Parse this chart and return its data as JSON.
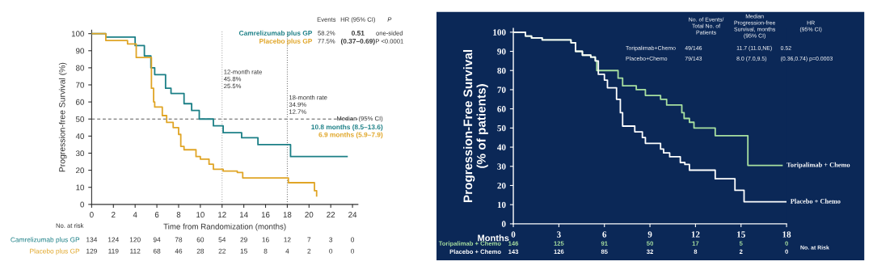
{
  "chart_data": [
    {
      "type": "step",
      "xlabel": "Time from Randomization (months)",
      "ylabel": "Progression-free Survival (%)",
      "xlim": [
        0,
        24.5
      ],
      "ylim": [
        0,
        102
      ],
      "xticks": [
        0,
        2,
        4,
        6,
        8,
        10,
        12,
        14,
        16,
        18,
        20,
        22,
        24
      ],
      "yticks": [
        0,
        10,
        20,
        30,
        40,
        50,
        60,
        70,
        80,
        90,
        100
      ],
      "grid": false,
      "legend": false,
      "ref_lines": [
        {
          "axis": "y",
          "value": 50,
          "color": "#555555",
          "line_style": "dashed"
        },
        {
          "axis": "x",
          "value": 12,
          "color": "#999999",
          "line_style": "dotted"
        },
        {
          "axis": "x",
          "value": 18,
          "color": "#555555",
          "line_style": "dotted"
        }
      ],
      "series": [
        {
          "name": "Camrelizumab plus GP",
          "color": "#1b7f86",
          "x": [
            0,
            1.3,
            4.0,
            4.85,
            5.45,
            5.8,
            6.8,
            7.3,
            8.5,
            9.2,
            9.9,
            11.2,
            12.1,
            13.8,
            15.3,
            18.3,
            23.5
          ],
          "values": [
            100,
            98,
            93,
            87,
            80,
            76,
            68,
            65,
            59,
            55,
            50,
            46,
            42,
            39,
            35,
            28,
            28
          ]
        },
        {
          "name": "Placebo plus GP",
          "color": "#e0a526",
          "x": [
            0,
            1.3,
            3.3,
            4.1,
            5.5,
            5.7,
            5.8,
            6.5,
            6.9,
            7.5,
            8.0,
            8.2,
            8.5,
            9.6,
            10.0,
            10.8,
            11.2,
            12.1,
            13.4,
            13.9,
            18.1,
            20.5,
            20.7
          ],
          "values": [
            100,
            96,
            94,
            86,
            68,
            60,
            57,
            52,
            48,
            45,
            41,
            34,
            32,
            28,
            26.5,
            23.5,
            20.6,
            19.5,
            18.7,
            15.5,
            12.7,
            8,
            5
          ]
        }
      ],
      "annotations": [
        "Events",
        "HR (95% CI)",
        "P",
        "58.2%",
        "0.51",
        "one-sided",
        "77.5%",
        "(0.37–0.69)",
        "P <0.0001",
        "12-month rate\n45.8%\n25.5%",
        "18-month rate\n34.9%\n12.7%",
        "Median (95% CI)",
        "10.8 months (8.5–13.6)",
        "6.9 months (5.9–7.9)",
        "No. at risk",
        "134",
        "124",
        "120",
        "94",
        "78",
        "60",
        "54",
        "29",
        "16",
        "12",
        "7",
        "3",
        "0",
        "129",
        "119",
        "112",
        "68",
        "46",
        "28",
        "22",
        "15",
        "8",
        "4",
        "2",
        "0",
        "0"
      ]
    },
    {
      "type": "step",
      "xlabel": "Months",
      "ylabel": "Progression-Free Survival\n(% of patients)",
      "xlim": [
        0,
        18
      ],
      "ylim": [
        0,
        102
      ],
      "xticks": [
        0,
        3,
        6,
        9,
        12,
        15,
        18
      ],
      "yticks": [
        0,
        10,
        20,
        30,
        40,
        50,
        60,
        70,
        80,
        90,
        100
      ],
      "grid": false,
      "legend": false,
      "series": [
        {
          "name": "Toripalimab + Chemo",
          "color": "#a8e0a0",
          "x": [
            0,
            0.8,
            1.2,
            1.9,
            3.8,
            4.1,
            4.55,
            5.1,
            5.4,
            5.5,
            6.9,
            7.2,
            8.1,
            8.7,
            9.7,
            10.1,
            11.1,
            11.25,
            11.6,
            11.9,
            13.3,
            15.45,
            17.7
          ],
          "values": [
            100,
            98,
            97,
            96,
            94.5,
            90,
            88,
            87,
            85,
            80,
            76,
            72,
            70,
            67,
            65,
            62,
            58,
            55,
            53,
            50,
            46,
            30.5,
            30.5
          ]
        },
        {
          "name": "Placebo + Chemo",
          "color": "#ffffff",
          "x": [
            0,
            0.8,
            1.2,
            1.9,
            3.8,
            4.1,
            4.55,
            5.1,
            5.4,
            5.6,
            6.0,
            6.2,
            6.8,
            7.05,
            7.2,
            8.0,
            8.5,
            8.7,
            9.7,
            9.9,
            10.3,
            11.0,
            11.3,
            11.6,
            13.3,
            14.6,
            15.2,
            17.95
          ],
          "values": [
            100,
            98,
            97,
            96,
            94.5,
            90,
            88,
            87,
            85,
            78,
            75,
            71,
            65,
            58,
            51,
            48,
            45,
            42,
            39,
            37,
            35,
            32,
            31,
            28,
            23.5,
            17.5,
            11.5,
            11.5
          ]
        }
      ],
      "annotations": [
        "No. of Events/\nTotal No. of\nPatients",
        "Median\nProgression-free\nSurvival, months\n(95% CI)",
        "HR\n(95% CI)",
        "Toripalimab+Chemo",
        "49/146",
        "11.7 (11.0,NE)",
        "0.52",
        "Placebo+Chemo",
        "79/143",
        "8.0 (7.0,9.5)",
        "(0.36,0.74) p=0.0003",
        "No. at Risk",
        "146",
        "125",
        "91",
        "50",
        "17",
        "5",
        "0",
        "143",
        "126",
        "85",
        "32",
        "8",
        "2",
        "0"
      ]
    }
  ]
}
